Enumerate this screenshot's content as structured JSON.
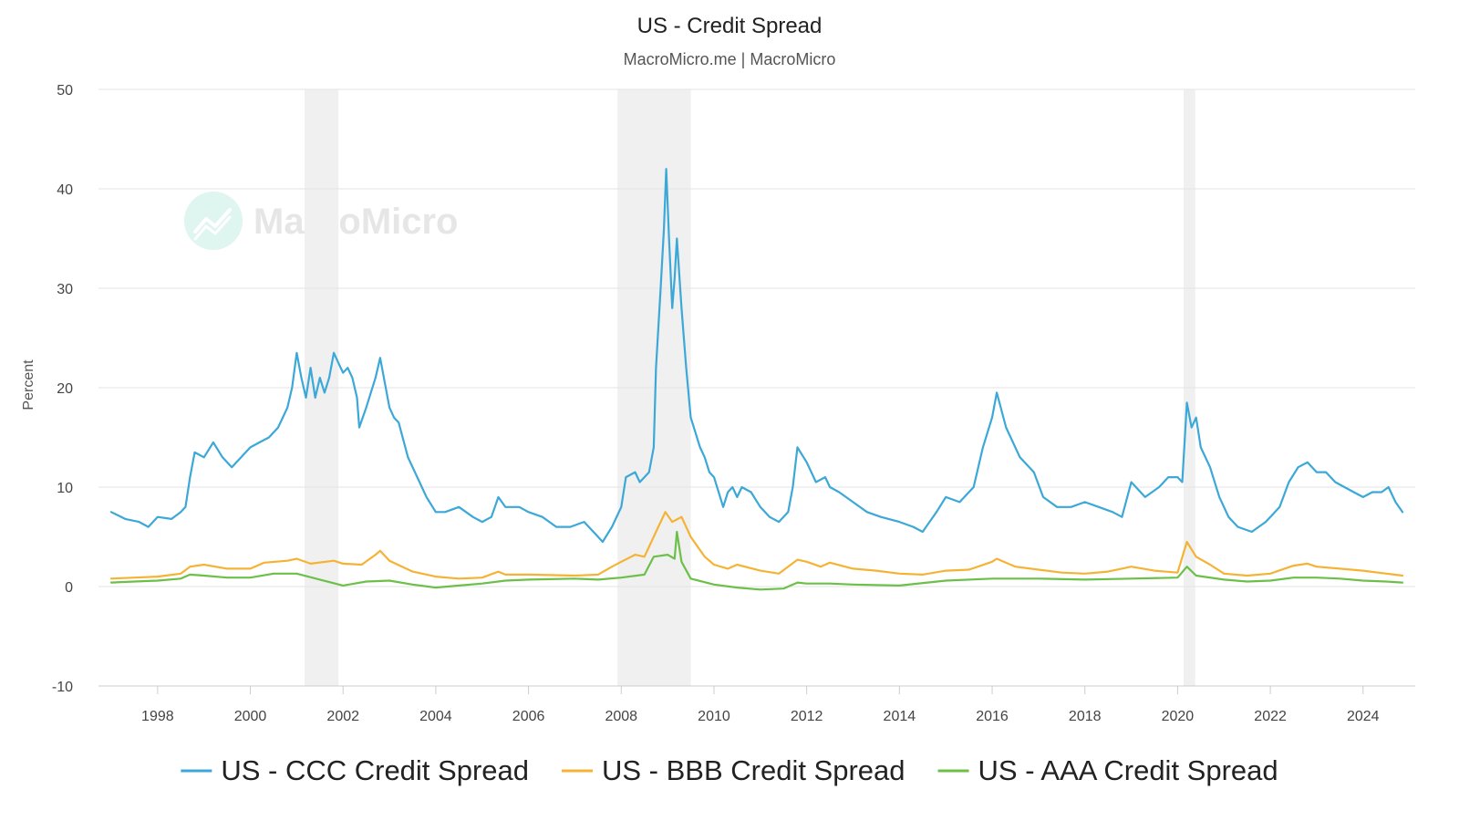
{
  "chart_data": {
    "type": "line",
    "title": "US - Credit Spread",
    "subtitle": "MacroMicro.me | MacroMicro",
    "ylabel": "Percent",
    "xlabel": "",
    "xlim": [
      1997.0,
      2024.85
    ],
    "ylim": [
      -10,
      50
    ],
    "y_ticks": [
      -10,
      0,
      10,
      20,
      30,
      40,
      50
    ],
    "x_ticks": [
      1998,
      2000,
      2002,
      2004,
      2006,
      2008,
      2010,
      2012,
      2014,
      2016,
      2018,
      2020,
      2022,
      2024
    ],
    "grid": "horizontal",
    "legend_position": "bottom",
    "watermark": "MacroMicro",
    "recessions": [
      [
        2001.17,
        2001.9
      ],
      [
        2007.92,
        2009.5
      ],
      [
        2020.13,
        2020.38
      ]
    ],
    "series": [
      {
        "name": "US - CCC Credit Spread",
        "color": "#3ba8d8",
        "points": [
          [
            1997.0,
            7.5
          ],
          [
            1997.3,
            6.8
          ],
          [
            1997.6,
            6.5
          ],
          [
            1997.8,
            6.0
          ],
          [
            1998.0,
            7.0
          ],
          [
            1998.3,
            6.8
          ],
          [
            1998.5,
            7.5
          ],
          [
            1998.6,
            8.0
          ],
          [
            1998.7,
            11.0
          ],
          [
            1998.8,
            13.5
          ],
          [
            1999.0,
            13.0
          ],
          [
            1999.2,
            14.5
          ],
          [
            1999.4,
            13.0
          ],
          [
            1999.6,
            12.0
          ],
          [
            1999.8,
            13.0
          ],
          [
            2000.0,
            14.0
          ],
          [
            2000.2,
            14.5
          ],
          [
            2000.4,
            15.0
          ],
          [
            2000.6,
            16.0
          ],
          [
            2000.8,
            18.0
          ],
          [
            2000.9,
            20.0
          ],
          [
            2001.0,
            23.5
          ],
          [
            2001.1,
            21.0
          ],
          [
            2001.2,
            19.0
          ],
          [
            2001.3,
            22.0
          ],
          [
            2001.4,
            19.0
          ],
          [
            2001.5,
            21.0
          ],
          [
            2001.6,
            19.5
          ],
          [
            2001.7,
            21.0
          ],
          [
            2001.8,
            23.5
          ],
          [
            2001.9,
            22.5
          ],
          [
            2002.0,
            21.5
          ],
          [
            2002.1,
            22.0
          ],
          [
            2002.2,
            21.0
          ],
          [
            2002.3,
            19.0
          ],
          [
            2002.35,
            16.0
          ],
          [
            2002.5,
            18.0
          ],
          [
            2002.7,
            21.0
          ],
          [
            2002.8,
            23.0
          ],
          [
            2002.9,
            20.5
          ],
          [
            2003.0,
            18.0
          ],
          [
            2003.1,
            17.0
          ],
          [
            2003.2,
            16.5
          ],
          [
            2003.4,
            13.0
          ],
          [
            2003.6,
            11.0
          ],
          [
            2003.8,
            9.0
          ],
          [
            2004.0,
            7.5
          ],
          [
            2004.2,
            7.5
          ],
          [
            2004.5,
            8.0
          ],
          [
            2004.8,
            7.0
          ],
          [
            2005.0,
            6.5
          ],
          [
            2005.2,
            7.0
          ],
          [
            2005.35,
            9.0
          ],
          [
            2005.5,
            8.0
          ],
          [
            2005.8,
            8.0
          ],
          [
            2006.0,
            7.5
          ],
          [
            2006.3,
            7.0
          ],
          [
            2006.6,
            6.0
          ],
          [
            2006.9,
            6.0
          ],
          [
            2007.2,
            6.5
          ],
          [
            2007.5,
            5.0
          ],
          [
            2007.6,
            4.5
          ],
          [
            2007.8,
            6.0
          ],
          [
            2008.0,
            8.0
          ],
          [
            2008.1,
            11.0
          ],
          [
            2008.3,
            11.5
          ],
          [
            2008.4,
            10.5
          ],
          [
            2008.5,
            11.0
          ],
          [
            2008.6,
            11.5
          ],
          [
            2008.7,
            14.0
          ],
          [
            2008.75,
            22.0
          ],
          [
            2008.85,
            30.0
          ],
          [
            2008.92,
            36.0
          ],
          [
            2008.97,
            42.0
          ],
          [
            2009.03,
            35.0
          ],
          [
            2009.1,
            28.0
          ],
          [
            2009.15,
            31.0
          ],
          [
            2009.2,
            35.0
          ],
          [
            2009.3,
            28.0
          ],
          [
            2009.4,
            22.0
          ],
          [
            2009.5,
            17.0
          ],
          [
            2009.7,
            14.0
          ],
          [
            2009.8,
            13.0
          ],
          [
            2009.9,
            11.5
          ],
          [
            2010.0,
            11.0
          ],
          [
            2010.1,
            9.5
          ],
          [
            2010.2,
            8.0
          ],
          [
            2010.3,
            9.5
          ],
          [
            2010.4,
            10.0
          ],
          [
            2010.5,
            9.0
          ],
          [
            2010.6,
            10.0
          ],
          [
            2010.8,
            9.5
          ],
          [
            2011.0,
            8.0
          ],
          [
            2011.2,
            7.0
          ],
          [
            2011.4,
            6.5
          ],
          [
            2011.6,
            7.5
          ],
          [
            2011.7,
            10.0
          ],
          [
            2011.8,
            14.0
          ],
          [
            2012.0,
            12.5
          ],
          [
            2012.2,
            10.5
          ],
          [
            2012.4,
            11.0
          ],
          [
            2012.5,
            10.0
          ],
          [
            2012.7,
            9.5
          ],
          [
            2013.0,
            8.5
          ],
          [
            2013.3,
            7.5
          ],
          [
            2013.6,
            7.0
          ],
          [
            2014.0,
            6.5
          ],
          [
            2014.3,
            6.0
          ],
          [
            2014.5,
            5.5
          ],
          [
            2014.8,
            7.5
          ],
          [
            2015.0,
            9.0
          ],
          [
            2015.3,
            8.5
          ],
          [
            2015.6,
            10.0
          ],
          [
            2015.8,
            14.0
          ],
          [
            2016.0,
            17.0
          ],
          [
            2016.1,
            19.5
          ],
          [
            2016.3,
            16.0
          ],
          [
            2016.6,
            13.0
          ],
          [
            2016.9,
            11.5
          ],
          [
            2017.1,
            9.0
          ],
          [
            2017.4,
            8.0
          ],
          [
            2017.7,
            8.0
          ],
          [
            2018.0,
            8.5
          ],
          [
            2018.3,
            8.0
          ],
          [
            2018.6,
            7.5
          ],
          [
            2018.8,
            7.0
          ],
          [
            2019.0,
            10.5
          ],
          [
            2019.3,
            9.0
          ],
          [
            2019.6,
            10.0
          ],
          [
            2019.8,
            11.0
          ],
          [
            2020.0,
            11.0
          ],
          [
            2020.1,
            10.5
          ],
          [
            2020.2,
            18.5
          ],
          [
            2020.3,
            16.0
          ],
          [
            2020.4,
            17.0
          ],
          [
            2020.5,
            14.0
          ],
          [
            2020.7,
            12.0
          ],
          [
            2020.9,
            9.0
          ],
          [
            2021.1,
            7.0
          ],
          [
            2021.3,
            6.0
          ],
          [
            2021.6,
            5.5
          ],
          [
            2021.9,
            6.5
          ],
          [
            2022.0,
            7.0
          ],
          [
            2022.2,
            8.0
          ],
          [
            2022.4,
            10.5
          ],
          [
            2022.6,
            12.0
          ],
          [
            2022.8,
            12.5
          ],
          [
            2023.0,
            11.5
          ],
          [
            2023.2,
            11.5
          ],
          [
            2023.4,
            10.5
          ],
          [
            2023.6,
            10.0
          ],
          [
            2023.8,
            9.5
          ],
          [
            2024.0,
            9.0
          ],
          [
            2024.2,
            9.5
          ],
          [
            2024.4,
            9.5
          ],
          [
            2024.55,
            10.0
          ],
          [
            2024.7,
            8.5
          ],
          [
            2024.85,
            7.5
          ]
        ]
      },
      {
        "name": "US - BBB Credit Spread",
        "color": "#f5b335",
        "points": [
          [
            1997.0,
            0.8
          ],
          [
            1997.5,
            0.9
          ],
          [
            1998.0,
            1.0
          ],
          [
            1998.5,
            1.3
          ],
          [
            1998.7,
            2.0
          ],
          [
            1999.0,
            2.2
          ],
          [
            1999.5,
            1.8
          ],
          [
            2000.0,
            1.8
          ],
          [
            2000.3,
            2.4
          ],
          [
            2000.8,
            2.6
          ],
          [
            2001.0,
            2.8
          ],
          [
            2001.3,
            2.3
          ],
          [
            2001.8,
            2.6
          ],
          [
            2002.0,
            2.3
          ],
          [
            2002.4,
            2.2
          ],
          [
            2002.7,
            3.2
          ],
          [
            2002.8,
            3.6
          ],
          [
            2003.0,
            2.6
          ],
          [
            2003.5,
            1.5
          ],
          [
            2004.0,
            1.0
          ],
          [
            2004.5,
            0.8
          ],
          [
            2005.0,
            0.9
          ],
          [
            2005.35,
            1.5
          ],
          [
            2005.5,
            1.2
          ],
          [
            2006.0,
            1.2
          ],
          [
            2007.0,
            1.1
          ],
          [
            2007.5,
            1.2
          ],
          [
            2007.8,
            2.0
          ],
          [
            2008.0,
            2.5
          ],
          [
            2008.3,
            3.2
          ],
          [
            2008.5,
            3.0
          ],
          [
            2008.75,
            5.5
          ],
          [
            2008.95,
            7.5
          ],
          [
            2009.1,
            6.5
          ],
          [
            2009.3,
            7.0
          ],
          [
            2009.5,
            5.0
          ],
          [
            2009.8,
            3.0
          ],
          [
            2010.0,
            2.2
          ],
          [
            2010.3,
            1.8
          ],
          [
            2010.5,
            2.2
          ],
          [
            2011.0,
            1.6
          ],
          [
            2011.4,
            1.3
          ],
          [
            2011.8,
            2.7
          ],
          [
            2012.0,
            2.5
          ],
          [
            2012.3,
            2.0
          ],
          [
            2012.5,
            2.4
          ],
          [
            2013.0,
            1.8
          ],
          [
            2013.5,
            1.6
          ],
          [
            2014.0,
            1.3
          ],
          [
            2014.5,
            1.2
          ],
          [
            2015.0,
            1.6
          ],
          [
            2015.5,
            1.7
          ],
          [
            2016.0,
            2.5
          ],
          [
            2016.1,
            2.8
          ],
          [
            2016.5,
            2.0
          ],
          [
            2017.0,
            1.7
          ],
          [
            2017.5,
            1.4
          ],
          [
            2018.0,
            1.3
          ],
          [
            2018.5,
            1.5
          ],
          [
            2019.0,
            2.0
          ],
          [
            2019.5,
            1.6
          ],
          [
            2020.0,
            1.4
          ],
          [
            2020.2,
            4.5
          ],
          [
            2020.4,
            3.0
          ],
          [
            2020.7,
            2.2
          ],
          [
            2021.0,
            1.3
          ],
          [
            2021.5,
            1.1
          ],
          [
            2022.0,
            1.3
          ],
          [
            2022.5,
            2.1
          ],
          [
            2022.8,
            2.3
          ],
          [
            2023.0,
            2.0
          ],
          [
            2023.5,
            1.8
          ],
          [
            2024.0,
            1.6
          ],
          [
            2024.5,
            1.3
          ],
          [
            2024.85,
            1.1
          ]
        ]
      },
      {
        "name": "US - AAA Credit Spread",
        "color": "#6cc04a",
        "points": [
          [
            1997.0,
            0.4
          ],
          [
            1997.5,
            0.5
          ],
          [
            1998.0,
            0.6
          ],
          [
            1998.5,
            0.8
          ],
          [
            1998.7,
            1.2
          ],
          [
            1999.0,
            1.1
          ],
          [
            1999.5,
            0.9
          ],
          [
            2000.0,
            0.9
          ],
          [
            2000.5,
            1.3
          ],
          [
            2001.0,
            1.3
          ],
          [
            2001.5,
            0.7
          ],
          [
            2002.0,
            0.1
          ],
          [
            2002.5,
            0.5
          ],
          [
            2003.0,
            0.6
          ],
          [
            2003.5,
            0.2
          ],
          [
            2004.0,
            -0.1
          ],
          [
            2004.5,
            0.1
          ],
          [
            2005.0,
            0.3
          ],
          [
            2005.5,
            0.6
          ],
          [
            2006.0,
            0.7
          ],
          [
            2007.0,
            0.8
          ],
          [
            2007.5,
            0.7
          ],
          [
            2008.0,
            0.9
          ],
          [
            2008.5,
            1.2
          ],
          [
            2008.7,
            3.0
          ],
          [
            2009.0,
            3.2
          ],
          [
            2009.15,
            2.8
          ],
          [
            2009.2,
            5.5
          ],
          [
            2009.3,
            2.5
          ],
          [
            2009.5,
            0.8
          ],
          [
            2010.0,
            0.2
          ],
          [
            2010.5,
            -0.1
          ],
          [
            2011.0,
            -0.3
          ],
          [
            2011.5,
            -0.2
          ],
          [
            2011.8,
            0.4
          ],
          [
            2012.0,
            0.3
          ],
          [
            2012.5,
            0.3
          ],
          [
            2013.0,
            0.2
          ],
          [
            2014.0,
            0.1
          ],
          [
            2015.0,
            0.6
          ],
          [
            2016.0,
            0.8
          ],
          [
            2017.0,
            0.8
          ],
          [
            2018.0,
            0.7
          ],
          [
            2019.0,
            0.8
          ],
          [
            2020.0,
            0.9
          ],
          [
            2020.2,
            2.0
          ],
          [
            2020.4,
            1.1
          ],
          [
            2021.0,
            0.7
          ],
          [
            2021.5,
            0.5
          ],
          [
            2022.0,
            0.6
          ],
          [
            2022.5,
            0.9
          ],
          [
            2023.0,
            0.9
          ],
          [
            2023.5,
            0.8
          ],
          [
            2024.0,
            0.6
          ],
          [
            2024.5,
            0.5
          ],
          [
            2024.85,
            0.4
          ]
        ]
      }
    ]
  }
}
